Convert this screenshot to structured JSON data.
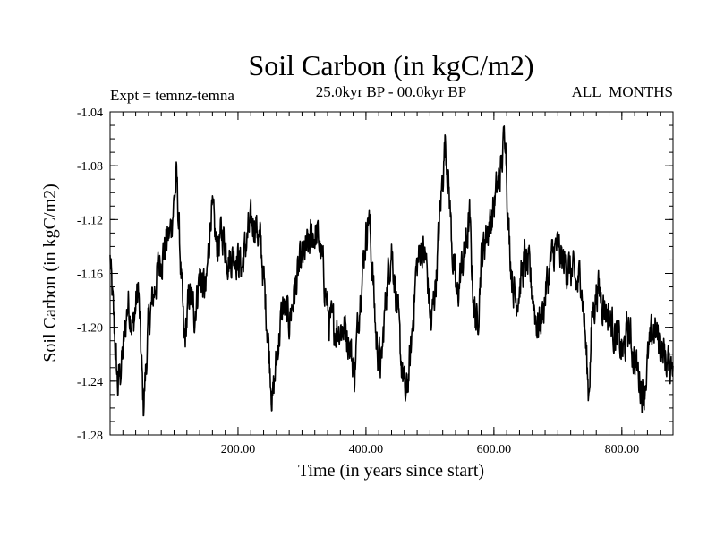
{
  "chart_data": {
    "type": "line",
    "title": "Soil Carbon (in kgC/m2)",
    "subtitle": "25.0kyr BP - 00.0kyr BP",
    "experiment_label": "Expt = temnz-temna",
    "season_label": "ALL_MONTHS",
    "xlabel": "Time (in years since start)",
    "ylabel": "Soil Carbon (in kgC/m2)",
    "xlim": [
      0,
      880
    ],
    "ylim": [
      -1.28,
      -1.04
    ],
    "x_ticks": [
      200,
      400,
      600,
      800
    ],
    "x_tick_labels": [
      "200.00",
      "400.00",
      "600.00",
      "800.00"
    ],
    "y_ticks": [
      -1.04,
      -1.08,
      -1.12,
      -1.16,
      -1.2,
      -1.24,
      -1.28
    ],
    "y_tick_labels": [
      "-1.04",
      "-1.08",
      "-1.12",
      "-1.16",
      "-1.20",
      "-1.24",
      "-1.28"
    ],
    "series": [
      {
        "name": "Soil Carbon",
        "color": "#000000",
        "anchors": [
          [
            0,
            -1.15
          ],
          [
            5,
            -1.19
          ],
          [
            12,
            -1.245
          ],
          [
            20,
            -1.22
          ],
          [
            28,
            -1.18
          ],
          [
            36,
            -1.2
          ],
          [
            44,
            -1.17
          ],
          [
            52,
            -1.26
          ],
          [
            60,
            -1.2
          ],
          [
            70,
            -1.17
          ],
          [
            78,
            -1.15
          ],
          [
            86,
            -1.14
          ],
          [
            94,
            -1.13
          ],
          [
            104,
            -1.09
          ],
          [
            110,
            -1.15
          ],
          [
            116,
            -1.215
          ],
          [
            124,
            -1.175
          ],
          [
            132,
            -1.19
          ],
          [
            140,
            -1.16
          ],
          [
            150,
            -1.175
          ],
          [
            158,
            -1.11
          ],
          [
            166,
            -1.14
          ],
          [
            176,
            -1.13
          ],
          [
            186,
            -1.15
          ],
          [
            196,
            -1.145
          ],
          [
            206,
            -1.155
          ],
          [
            216,
            -1.13
          ],
          [
            226,
            -1.12
          ],
          [
            236,
            -1.14
          ],
          [
            246,
            -1.2
          ],
          [
            254,
            -1.255
          ],
          [
            262,
            -1.215
          ],
          [
            270,
            -1.185
          ],
          [
            280,
            -1.195
          ],
          [
            290,
            -1.17
          ],
          [
            300,
            -1.15
          ],
          [
            310,
            -1.14
          ],
          [
            318,
            -1.13
          ],
          [
            326,
            -1.135
          ],
          [
            334,
            -1.16
          ],
          [
            342,
            -1.195
          ],
          [
            350,
            -1.2
          ],
          [
            358,
            -1.2
          ],
          [
            366,
            -1.2
          ],
          [
            374,
            -1.21
          ],
          [
            382,
            -1.235
          ],
          [
            390,
            -1.18
          ],
          [
            398,
            -1.14
          ],
          [
            404,
            -1.115
          ],
          [
            410,
            -1.155
          ],
          [
            416,
            -1.21
          ],
          [
            424,
            -1.23
          ],
          [
            432,
            -1.17
          ],
          [
            440,
            -1.14
          ],
          [
            448,
            -1.18
          ],
          [
            454,
            -1.22
          ],
          [
            462,
            -1.255
          ],
          [
            470,
            -1.22
          ],
          [
            478,
            -1.16
          ],
          [
            486,
            -1.14
          ],
          [
            494,
            -1.15
          ],
          [
            502,
            -1.2
          ],
          [
            510,
            -1.16
          ],
          [
            518,
            -1.1
          ],
          [
            524,
            -1.06
          ],
          [
            530,
            -1.1
          ],
          [
            536,
            -1.15
          ],
          [
            542,
            -1.18
          ],
          [
            548,
            -1.16
          ],
          [
            556,
            -1.14
          ],
          [
            562,
            -1.12
          ],
          [
            568,
            -1.18
          ],
          [
            574,
            -1.2
          ],
          [
            580,
            -1.15
          ],
          [
            588,
            -1.13
          ],
          [
            596,
            -1.12
          ],
          [
            604,
            -1.1
          ],
          [
            612,
            -1.08
          ],
          [
            618,
            -1.05
          ],
          [
            622,
            -1.12
          ],
          [
            628,
            -1.16
          ],
          [
            634,
            -1.18
          ],
          [
            640,
            -1.17
          ],
          [
            648,
            -1.15
          ],
          [
            656,
            -1.16
          ],
          [
            662,
            -1.18
          ],
          [
            668,
            -1.2
          ],
          [
            676,
            -1.19
          ],
          [
            682,
            -1.17
          ],
          [
            690,
            -1.15
          ],
          [
            698,
            -1.14
          ],
          [
            706,
            -1.15
          ],
          [
            714,
            -1.155
          ],
          [
            722,
            -1.16
          ],
          [
            730,
            -1.17
          ],
          [
            736,
            -1.16
          ],
          [
            742,
            -1.2
          ],
          [
            748,
            -1.25
          ],
          [
            754,
            -1.19
          ],
          [
            762,
            -1.17
          ],
          [
            770,
            -1.18
          ],
          [
            778,
            -1.19
          ],
          [
            786,
            -1.2
          ],
          [
            794,
            -1.21
          ],
          [
            802,
            -1.22
          ],
          [
            810,
            -1.2
          ],
          [
            818,
            -1.22
          ],
          [
            826,
            -1.235
          ],
          [
            834,
            -1.25
          ],
          [
            842,
            -1.22
          ],
          [
            850,
            -1.2
          ],
          [
            858,
            -1.21
          ],
          [
            866,
            -1.22
          ],
          [
            874,
            -1.23
          ],
          [
            880,
            -1.22
          ]
        ]
      }
    ]
  }
}
